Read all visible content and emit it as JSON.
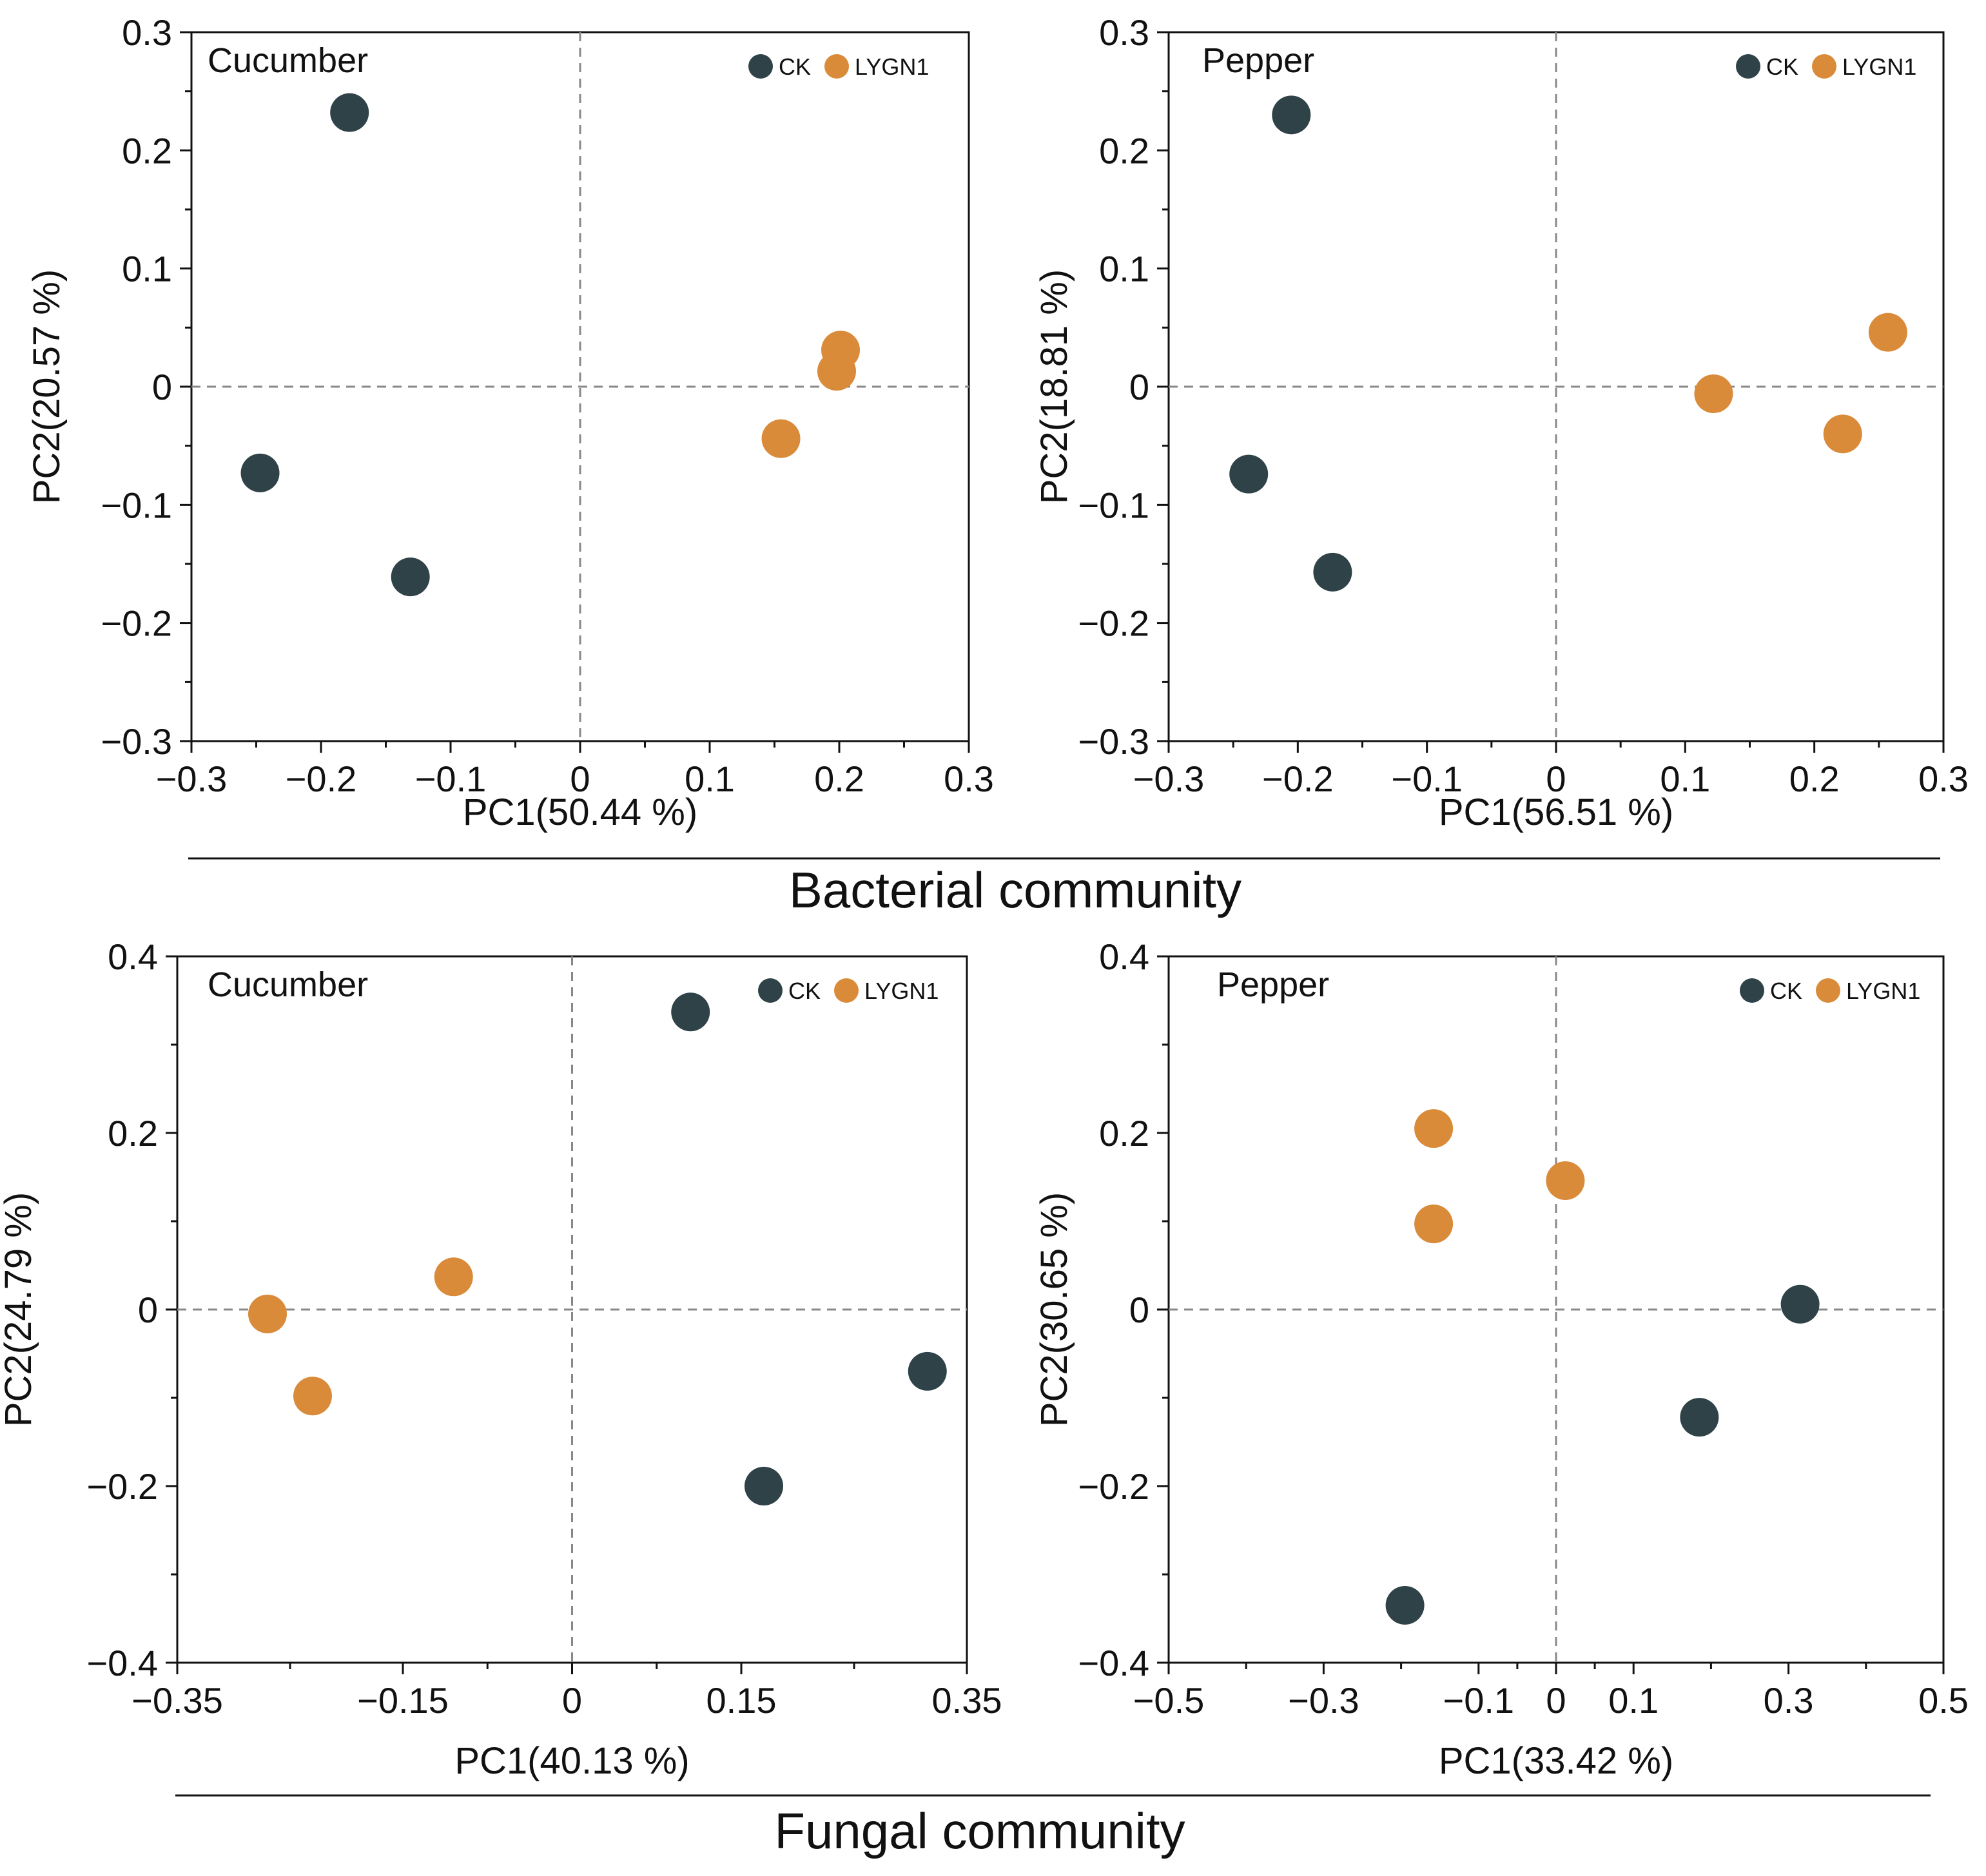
{
  "colors": {
    "CK": "#2f4248",
    "LYGN1": "#d98b3a"
  },
  "chart_data": [
    {
      "type": "scatter",
      "title": "Cucumber",
      "community": "Bacterial community",
      "xlabel": "PC1(50.44 %)",
      "ylabel": "PC2(20.57 %)",
      "xlim": [
        -0.3,
        0.3
      ],
      "ylim": [
        -0.3,
        0.3
      ],
      "xticks": [
        -0.3,
        -0.2,
        -0.1,
        0,
        0.1,
        0.2,
        0.3
      ],
      "xtick_labels": [
        "−0.3",
        "−0.2",
        "−0.1",
        "0",
        "0.1",
        "0.2",
        "0.3"
      ],
      "yticks": [
        -0.3,
        -0.2,
        -0.1,
        0,
        0.1,
        0.2,
        0.3
      ],
      "ytick_labels": [
        "−0.3",
        "−0.2",
        "−0.1",
        "0",
        "0.1",
        "0.2",
        "0.3"
      ],
      "legend": [
        "CK",
        "LYGN1"
      ],
      "series": [
        {
          "name": "CK",
          "points": [
            [
              -0.178,
              0.232
            ],
            [
              -0.247,
              -0.073
            ],
            [
              -0.131,
              -0.161
            ]
          ]
        },
        {
          "name": "LYGN1",
          "points": [
            [
              0.201,
              0.031
            ],
            [
              0.198,
              0.013
            ],
            [
              0.155,
              -0.044
            ]
          ]
        }
      ]
    },
    {
      "type": "scatter",
      "title": "Pepper",
      "community": "Bacterial community",
      "xlabel": "PC1(56.51 %)",
      "ylabel": "PC2(18.81 %)",
      "xlim": [
        -0.3,
        0.3
      ],
      "ylim": [
        -0.3,
        0.3
      ],
      "xticks": [
        -0.3,
        -0.2,
        -0.1,
        0,
        0.1,
        0.2,
        0.3
      ],
      "xtick_labels": [
        "−0.3",
        "−0.2",
        "−0.1",
        "0",
        "0.1",
        "0.2",
        "0.3"
      ],
      "yticks": [
        -0.3,
        -0.2,
        -0.1,
        0,
        0.1,
        0.2,
        0.3
      ],
      "ytick_labels": [
        "−0.3",
        "−0.2",
        "−0.1",
        "0",
        "0.1",
        "0.2",
        "0.3"
      ],
      "legend": [
        "CK",
        "LYGN1"
      ],
      "series": [
        {
          "name": "CK",
          "points": [
            [
              -0.205,
              0.23
            ],
            [
              -0.238,
              -0.074
            ],
            [
              -0.173,
              -0.157
            ]
          ]
        },
        {
          "name": "LYGN1",
          "points": [
            [
              0.257,
              0.046
            ],
            [
              0.122,
              -0.006
            ],
            [
              0.222,
              -0.04
            ]
          ]
        }
      ]
    },
    {
      "type": "scatter",
      "title": "Cucumber",
      "community": "Fungal community",
      "xlabel": "PC1(40.13 %)",
      "ylabel": "PC2(24.79 %)",
      "xlim": [
        -0.35,
        0.35
      ],
      "ylim": [
        -0.4,
        0.4
      ],
      "xticks": [
        -0.35,
        -0.15,
        0,
        0.15,
        0.35
      ],
      "xtick_labels": [
        "−0.35",
        "−0.15",
        "0",
        "0.15",
        "0.35"
      ],
      "yticks": [
        -0.4,
        -0.2,
        0,
        0.2,
        0.4
      ],
      "ytick_labels": [
        "−0.4",
        "−0.2",
        "0",
        "0.2",
        "0.4"
      ],
      "legend": [
        "CK",
        "LYGN1"
      ],
      "series": [
        {
          "name": "CK",
          "points": [
            [
              0.105,
              0.337
            ],
            [
              0.315,
              -0.07
            ],
            [
              0.17,
              -0.2
            ]
          ]
        },
        {
          "name": "LYGN1",
          "points": [
            [
              -0.27,
              -0.005
            ],
            [
              -0.23,
              -0.098
            ],
            [
              -0.105,
              0.037
            ]
          ]
        }
      ]
    },
    {
      "type": "scatter",
      "title": "Pepper",
      "community": "Fungal community",
      "xlabel": "PC1(33.42 %)",
      "ylabel": "PC2(30.65 %)",
      "xlim": [
        -0.5,
        0.5
      ],
      "ylim": [
        -0.4,
        0.4
      ],
      "xticks": [
        -0.5,
        -0.3,
        -0.1,
        0,
        0.1,
        0.3,
        0.5
      ],
      "xtick_labels": [
        "−0.5",
        "−0.3",
        "−0.1",
        "0",
        "0.1",
        "0.3",
        "0.5"
      ],
      "yticks": [
        -0.4,
        -0.2,
        0,
        0.2,
        0.4
      ],
      "ytick_labels": [
        "−0.4",
        "−0.2",
        "0",
        "0.2",
        "0.4"
      ],
      "legend": [
        "CK",
        "LYGN1"
      ],
      "series": [
        {
          "name": "CK",
          "points": [
            [
              0.315,
              0.006
            ],
            [
              0.185,
              -0.122
            ],
            [
              -0.195,
              -0.335
            ]
          ]
        },
        {
          "name": "LYGN1",
          "points": [
            [
              -0.158,
              0.205
            ],
            [
              0.012,
              0.146
            ],
            [
              -0.158,
              0.097
            ]
          ]
        }
      ]
    }
  ],
  "community_titles": [
    "Bacterial community",
    "Fungal community"
  ]
}
